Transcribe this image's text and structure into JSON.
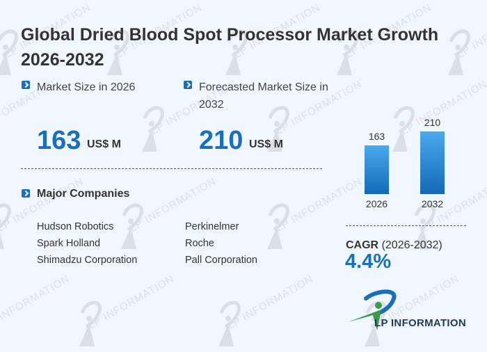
{
  "title": "Global Dried Blood Spot Processor Market Growth 2026-2032",
  "market_size": {
    "label_2026": "Market Size in 2026",
    "value_2026": "163",
    "label_2032": "Forecasted Market Size in 2032",
    "value_2032": "210",
    "unit": "US$ M"
  },
  "companies": {
    "title": "Major Companies",
    "left": [
      "Hudson Robotics",
      "Spark Holland",
      "Shimadzu Corporation"
    ],
    "right": [
      "Perkinelmer",
      "Roche",
      "Pall Corporation"
    ]
  },
  "chart_data": {
    "type": "bar",
    "categories": [
      "2026",
      "2032"
    ],
    "values": [
      163,
      210
    ],
    "title": "",
    "xlabel": "",
    "ylabel": "",
    "ylim": [
      0,
      210
    ],
    "grid": false,
    "data_labels": [
      "163",
      "210"
    ]
  },
  "cagr": {
    "label": "CAGR",
    "period": "(2026-2032)",
    "value": "4.4%"
  },
  "logo": {
    "text": "LP INFORMATION"
  },
  "watermark": {
    "text": "LP INFORMATION"
  },
  "colors": {
    "accent": "#1a6fbd",
    "background": "#f1f7fe",
    "bar_top": "#4aa9ef",
    "bar_bottom": "#1569b6",
    "logo_green": "#3a9a4a"
  }
}
